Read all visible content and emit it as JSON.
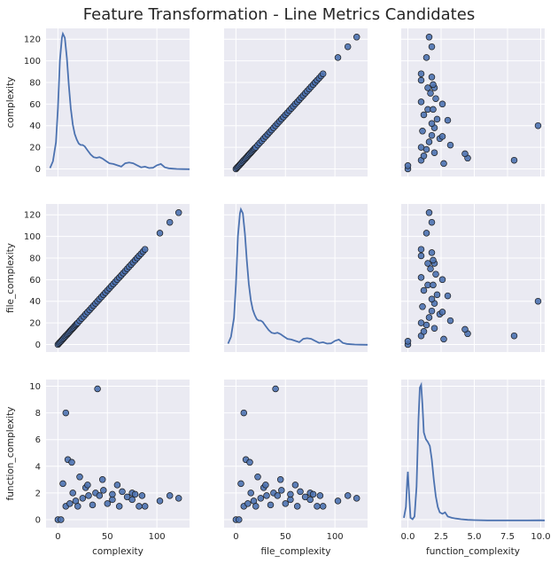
{
  "title": "Feature Transformation - Line Metrics Candidates",
  "colors": {
    "panel_bg": "#EAEAF2",
    "grid": "#FFFFFF",
    "series": "#4C72B0",
    "marker_edge": "#1a1a1a"
  },
  "variables": [
    "complexity",
    "file_complexity",
    "function_complexity"
  ],
  "chart_data": {
    "type": "pairplot",
    "title": "Feature Transformation - Line Metrics Candidates",
    "grid": true,
    "variables": [
      {
        "name": "complexity",
        "lim": [
          -12,
          133
        ],
        "ticks": [
          0,
          50,
          100
        ],
        "ytick_labels": [
          0,
          20,
          40,
          60,
          80,
          100,
          120
        ]
      },
      {
        "name": "file_complexity",
        "lim": [
          -12,
          133
        ],
        "ticks": [
          0,
          50,
          100
        ],
        "ytick_labels": [
          0,
          20,
          40,
          60,
          80,
          100,
          120
        ]
      },
      {
        "name": "function_complexity",
        "lim": [
          -0.5,
          10.3
        ],
        "ticks": [
          0.0,
          2.5,
          5.0,
          7.5,
          10.0
        ],
        "ytick_labels": [
          0,
          2,
          4,
          6,
          8,
          10
        ]
      }
    ],
    "ylims": [
      [
        -7,
        130
      ],
      [
        -7,
        130
      ],
      [
        -0.6,
        10.5
      ]
    ],
    "diag_kde": [
      {
        "x": [
          -8,
          -5,
          -2,
          0,
          2,
          4,
          5,
          7,
          9,
          11,
          13,
          15,
          17,
          19,
          21,
          23,
          25,
          27,
          30,
          33,
          36,
          39,
          42,
          45,
          48,
          52,
          56,
          60,
          64,
          68,
          72,
          76,
          80,
          84,
          88,
          92,
          96,
          100,
          104,
          108,
          112,
          116,
          120,
          126,
          133
        ],
        "density": [
          0.01,
          0.06,
          0.2,
          0.45,
          0.8,
          0.97,
          1.0,
          0.97,
          0.82,
          0.62,
          0.45,
          0.33,
          0.26,
          0.22,
          0.19,
          0.18,
          0.18,
          0.17,
          0.14,
          0.11,
          0.09,
          0.085,
          0.09,
          0.08,
          0.065,
          0.045,
          0.04,
          0.03,
          0.02,
          0.045,
          0.05,
          0.045,
          0.03,
          0.015,
          0.02,
          0.01,
          0.012,
          0.03,
          0.04,
          0.015,
          0.008,
          0.005,
          0.003,
          0.002,
          0.001
        ]
      },
      {
        "x": [
          -8,
          -5,
          -2,
          0,
          2,
          4,
          5,
          7,
          9,
          11,
          13,
          15,
          17,
          19,
          21,
          23,
          25,
          27,
          30,
          33,
          36,
          39,
          42,
          45,
          48,
          52,
          56,
          60,
          64,
          68,
          72,
          76,
          80,
          84,
          88,
          92,
          96,
          100,
          104,
          108,
          112,
          116,
          120,
          126,
          133
        ],
        "density": [
          0.01,
          0.06,
          0.2,
          0.45,
          0.8,
          0.97,
          1.0,
          0.97,
          0.82,
          0.62,
          0.45,
          0.33,
          0.26,
          0.22,
          0.19,
          0.18,
          0.18,
          0.17,
          0.14,
          0.11,
          0.09,
          0.085,
          0.09,
          0.08,
          0.065,
          0.045,
          0.04,
          0.03,
          0.02,
          0.045,
          0.05,
          0.045,
          0.03,
          0.015,
          0.02,
          0.01,
          0.012,
          0.03,
          0.04,
          0.015,
          0.008,
          0.005,
          0.003,
          0.002,
          0.001
        ]
      },
      {
        "x": [
          -0.3,
          -0.15,
          -0.05,
          0.0,
          0.1,
          0.2,
          0.35,
          0.5,
          0.65,
          0.8,
          0.9,
          1.0,
          1.1,
          1.2,
          1.35,
          1.5,
          1.65,
          1.8,
          1.95,
          2.1,
          2.25,
          2.4,
          2.6,
          2.8,
          3.0,
          3.3,
          3.6,
          4.0,
          4.5,
          5.0,
          6,
          7,
          8,
          9,
          10,
          10.3
        ],
        "density": [
          0.02,
          0.1,
          0.3,
          0.36,
          0.18,
          0.02,
          0.01,
          0.03,
          0.25,
          0.75,
          0.98,
          1.0,
          0.85,
          0.65,
          0.6,
          0.58,
          0.55,
          0.45,
          0.3,
          0.18,
          0.1,
          0.06,
          0.05,
          0.06,
          0.03,
          0.02,
          0.015,
          0.01,
          0.005,
          0.003,
          0.001,
          0.001,
          0.001,
          0.001,
          0.002,
          0.001
        ]
      }
    ],
    "pairs": {
      "complexity_vs_file_complexity": [
        [
          0,
          0
        ],
        [
          1,
          1
        ],
        [
          2,
          2
        ],
        [
          3,
          3
        ],
        [
          4,
          4
        ],
        [
          5,
          5
        ],
        [
          6,
          6
        ],
        [
          7,
          7
        ],
        [
          8,
          8
        ],
        [
          9,
          9
        ],
        [
          10,
          10
        ],
        [
          11,
          11
        ],
        [
          12,
          12
        ],
        [
          13,
          13
        ],
        [
          14,
          14
        ],
        [
          15,
          15
        ],
        [
          16,
          16
        ],
        [
          17,
          17
        ],
        [
          18,
          18
        ],
        [
          19,
          19
        ],
        [
          20,
          20
        ],
        [
          22,
          22
        ],
        [
          24,
          24
        ],
        [
          26,
          26
        ],
        [
          28,
          28
        ],
        [
          30,
          30
        ],
        [
          32,
          32
        ],
        [
          34,
          34
        ],
        [
          36,
          36
        ],
        [
          38,
          38
        ],
        [
          40,
          40
        ],
        [
          42,
          42
        ],
        [
          44,
          44
        ],
        [
          46,
          46
        ],
        [
          48,
          48
        ],
        [
          50,
          50
        ],
        [
          52,
          52
        ],
        [
          54,
          54
        ],
        [
          56,
          56
        ],
        [
          58,
          58
        ],
        [
          60,
          60
        ],
        [
          62,
          62
        ],
        [
          64,
          64
        ],
        [
          66,
          66
        ],
        [
          68,
          68
        ],
        [
          70,
          70
        ],
        [
          72,
          72
        ],
        [
          74,
          74
        ],
        [
          76,
          76
        ],
        [
          78,
          78
        ],
        [
          80,
          80
        ],
        [
          82,
          82
        ],
        [
          84,
          84
        ],
        [
          86,
          86
        ],
        [
          88,
          88
        ],
        [
          103,
          103
        ],
        [
          113,
          113
        ],
        [
          122,
          122
        ]
      ],
      "complexity_vs_function_complexity": [
        [
          0,
          0
        ],
        [
          3,
          0
        ],
        [
          8,
          1
        ],
        [
          12,
          1.2
        ],
        [
          18,
          1.4
        ],
        [
          25,
          1.6
        ],
        [
          31,
          1.8
        ],
        [
          38,
          2.0
        ],
        [
          46,
          2.2
        ],
        [
          55,
          1.5
        ],
        [
          62,
          1.0
        ],
        [
          70,
          1.7
        ],
        [
          75,
          1.5
        ],
        [
          82,
          1.0
        ],
        [
          88,
          1.0
        ],
        [
          103,
          1.4
        ],
        [
          113,
          1.8
        ],
        [
          122,
          1.6
        ],
        [
          40,
          9.8
        ],
        [
          8,
          8.0
        ],
        [
          10,
          4.5
        ],
        [
          14,
          4.3
        ],
        [
          22,
          3.2
        ],
        [
          45,
          3.0
        ],
        [
          5,
          2.7
        ],
        [
          28,
          2.4
        ],
        [
          60,
          2.6
        ],
        [
          75,
          2.0
        ],
        [
          20,
          1.0
        ],
        [
          50,
          1.2
        ],
        [
          35,
          1.1
        ],
        [
          65,
          2.1
        ],
        [
          15,
          2.0
        ],
        [
          30,
          2.6
        ],
        [
          42,
          1.8
        ],
        [
          55,
          1.9
        ],
        [
          78,
          1.9
        ],
        [
          85,
          1.8
        ]
      ],
      "file_complexity_vs_function_complexity": [
        [
          0,
          0
        ],
        [
          3,
          0
        ],
        [
          8,
          1
        ],
        [
          12,
          1.2
        ],
        [
          18,
          1.4
        ],
        [
          25,
          1.6
        ],
        [
          31,
          1.8
        ],
        [
          38,
          2.0
        ],
        [
          46,
          2.2
        ],
        [
          55,
          1.5
        ],
        [
          62,
          1.0
        ],
        [
          70,
          1.7
        ],
        [
          75,
          1.5
        ],
        [
          82,
          1.0
        ],
        [
          88,
          1.0
        ],
        [
          103,
          1.4
        ],
        [
          113,
          1.8
        ],
        [
          122,
          1.6
        ],
        [
          40,
          9.8
        ],
        [
          8,
          8.0
        ],
        [
          10,
          4.5
        ],
        [
          14,
          4.3
        ],
        [
          22,
          3.2
        ],
        [
          45,
          3.0
        ],
        [
          5,
          2.7
        ],
        [
          28,
          2.4
        ],
        [
          60,
          2.6
        ],
        [
          75,
          2.0
        ],
        [
          20,
          1.0
        ],
        [
          50,
          1.2
        ],
        [
          35,
          1.1
        ],
        [
          65,
          2.1
        ],
        [
          15,
          2.0
        ],
        [
          30,
          2.6
        ],
        [
          42,
          1.8
        ],
        [
          55,
          1.9
        ],
        [
          78,
          1.9
        ],
        [
          85,
          1.8
        ]
      ]
    }
  }
}
